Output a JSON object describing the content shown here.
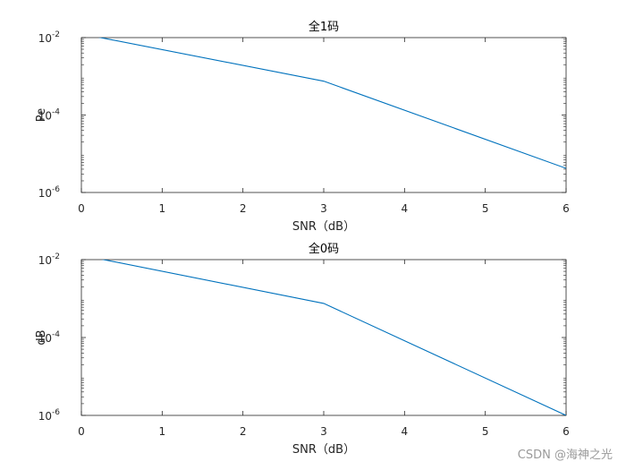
{
  "chart_data": [
    {
      "type": "line",
      "title": "全1码",
      "xlabel": "SNR（dB）",
      "ylabel": "Pe",
      "xlim": [
        0,
        6
      ],
      "ylim": [
        1e-06,
        0.01
      ],
      "yscale": "log",
      "grid": false,
      "xticks": [
        "0",
        "1",
        "2",
        "3",
        "4",
        "5",
        "6"
      ],
      "yticks": [
        {
          "value": 0.01,
          "base": "10",
          "exp": "-2"
        },
        {
          "value": 0.0001,
          "base": "10",
          "exp": "-4"
        },
        {
          "value": 1e-06,
          "base": "10",
          "exp": "-6"
        }
      ],
      "series": [
        {
          "color": "#0072BD",
          "x": [
            0,
            3,
            6
          ],
          "y": [
            0.0125,
            0.00075,
            4.2e-06
          ]
        }
      ]
    },
    {
      "type": "line",
      "title": "全0码",
      "xlabel": "SNR（dB）",
      "ylabel": "dB",
      "xlim": [
        0,
        6
      ],
      "ylim": [
        1e-06,
        0.01
      ],
      "yscale": "log",
      "grid": false,
      "xticks": [
        "0",
        "1",
        "2",
        "3",
        "4",
        "5",
        "6"
      ],
      "yticks": [
        {
          "value": 0.01,
          "base": "10",
          "exp": "-2"
        },
        {
          "value": 0.0001,
          "base": "10",
          "exp": "-4"
        },
        {
          "value": 1e-06,
          "base": "10",
          "exp": "-6"
        }
      ],
      "series": [
        {
          "color": "#0072BD",
          "x": [
            0,
            3,
            6
          ],
          "y": [
            0.013,
            0.00075,
            1e-06
          ]
        }
      ]
    }
  ],
  "watermark": "CSDN @海神之光"
}
